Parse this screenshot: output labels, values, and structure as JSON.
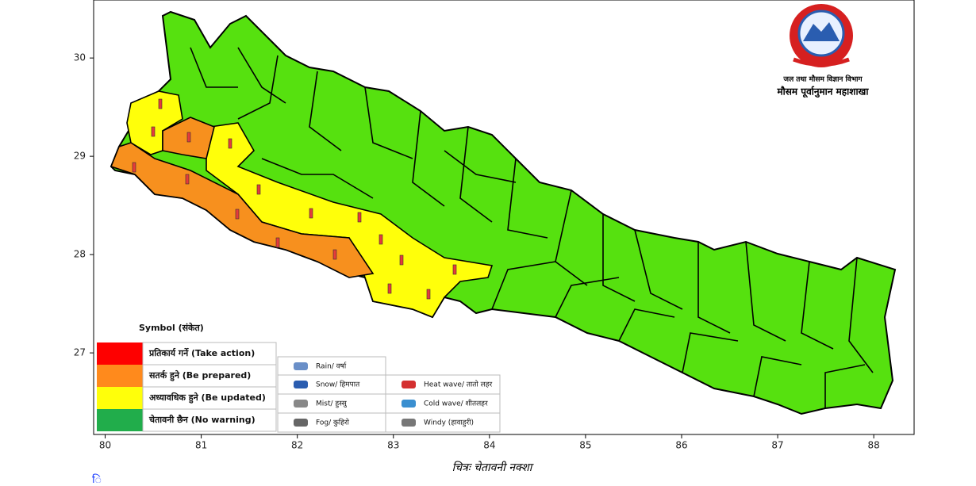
{
  "map": {
    "xlim": [
      79.88,
      88.42
    ],
    "ylim": [
      26.17,
      30.59
    ],
    "xticks": [
      80,
      81,
      82,
      83,
      84,
      85,
      86,
      87,
      88
    ],
    "yticks": [
      27,
      28,
      29,
      30
    ],
    "agency": [
      "जल तथा मौसम विज्ञान विभाग",
      "मौसम पूर्वानुमान महाशाखा"
    ],
    "legend_title": "Symbol (संकेत)",
    "levels": [
      {
        "label": "प्रतिकार्य गर्ने (Take action)",
        "color": "#fe0000"
      },
      {
        "label": "सतर्क हुने (Be prepared)",
        "color": "#ff8a1c"
      },
      {
        "label": "अध्यावधिक हुने (Be updated)",
        "color": "#ffff0a"
      },
      {
        "label": "चेतावनी छैन (No warning)",
        "color": "#21ad4b"
      }
    ],
    "symbols": [
      "Rain/ वर्षा",
      "Snow/ हिमपात",
      "Mist/ हुस्सु",
      "Fog/ कुहिरो",
      "Heat wave/ तातो लहर",
      "Cold wave/ शीतलहर",
      "Windy (हावाहुरी)"
    ],
    "caption": "चित्रः चेतावनी नक्शा",
    "fragment": "ि"
  }
}
